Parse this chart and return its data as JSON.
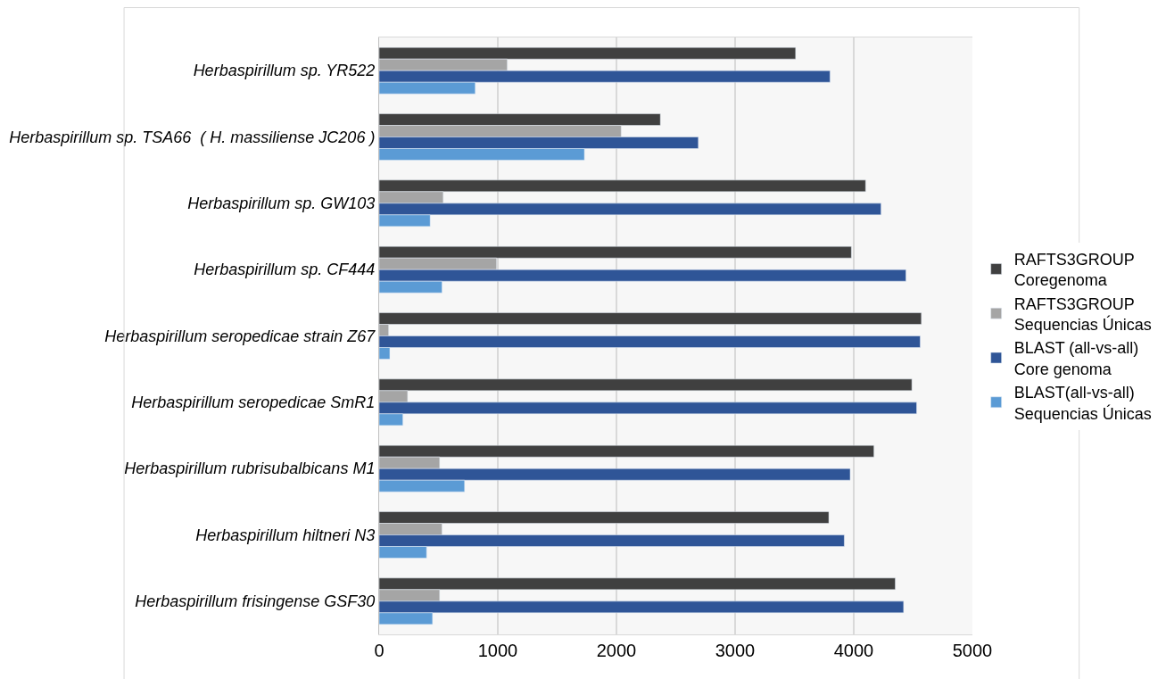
{
  "chart_data": {
    "type": "bar",
    "orientation": "horizontal",
    "categories": [
      "Herbaspirillum sp. YR522",
      "Herbaspirillum sp. TSA66  ( H. massiliense JC206 )",
      "Herbaspirillum sp. GW103",
      "Herbaspirillum sp. CF444",
      "Herbaspirillum seropedicae strain Z67",
      "Herbaspirillum seropedicae SmR1",
      "Herbaspirillum rubrisubalbicans M1",
      "Herbaspirillum hiltneri N3",
      "Herbaspirillum frisingense GSF30"
    ],
    "series": [
      {
        "name": "RAFTS3GROUP\nCoregenoma",
        "color": "#404040",
        "values": [
          3510,
          2370,
          4100,
          3980,
          4570,
          4490,
          4170,
          3790,
          4350
        ]
      },
      {
        "name": "RAFTS3GROUP\nSequencias Únicas",
        "color": "#a5a5a5",
        "values": [
          1080,
          2040,
          540,
          990,
          80,
          240,
          510,
          530,
          510
        ]
      },
      {
        "name": "BLAST (all-vs-all)\nCore genoma",
        "color": "#2f5597",
        "values": [
          3800,
          2690,
          4230,
          4440,
          4560,
          4530,
          3970,
          3920,
          4420
        ]
      },
      {
        "name": "BLAST(all-vs-all)\nSequencias Únicas",
        "color": "#5b9bd5",
        "values": [
          810,
          1730,
          430,
          530,
          90,
          200,
          720,
          400,
          450
        ]
      }
    ],
    "xlim": [
      0,
      5000
    ],
    "xticks": [
      0,
      1000,
      2000,
      3000,
      4000,
      5000
    ],
    "grid": "x",
    "legend": "right"
  }
}
